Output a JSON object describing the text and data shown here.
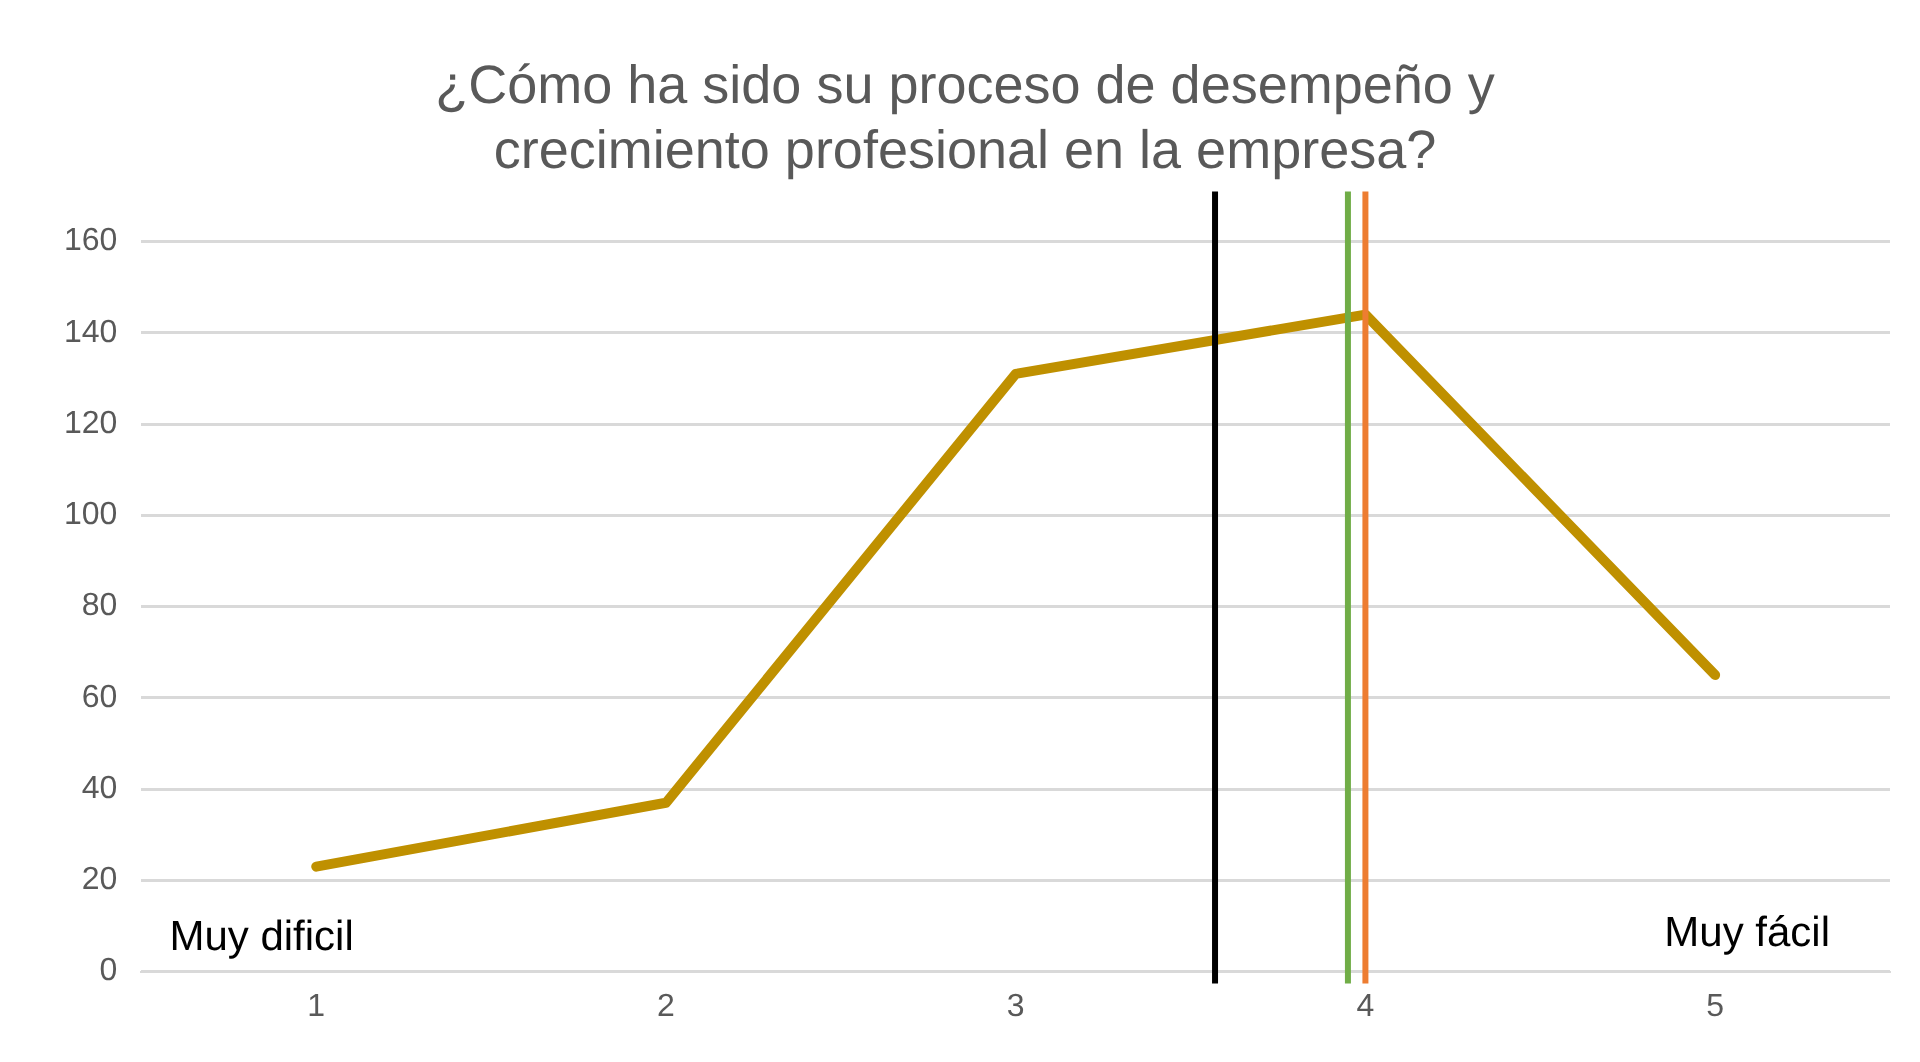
{
  "chart_data": {
    "type": "line",
    "title": [
      "¿Cómo ha sido su proceso de desempeño y",
      "crecimiento profesional en la empresa?"
    ],
    "x": [
      1,
      2,
      3,
      4,
      5
    ],
    "series": [
      {
        "color": "#bf9000",
        "values": [
          23,
          37,
          131,
          144,
          65
        ]
      }
    ],
    "xlim": [
      0.5,
      5.5
    ],
    "xticks": [
      1,
      2,
      3,
      4,
      5
    ],
    "ylim": [
      0,
      160
    ],
    "yticks": [
      0,
      20,
      40,
      60,
      80,
      100,
      120,
      140,
      160
    ],
    "grid": "y",
    "legend": false,
    "marker": "none",
    "line_style": "solid",
    "ref_lines": [
      {
        "axis": "x",
        "value": 3.57,
        "color": "#000000"
      },
      {
        "axis": "x",
        "value": 3.95,
        "color": "#70ad47"
      },
      {
        "axis": "x",
        "value": 4,
        "color": "#ed7d31"
      }
    ],
    "annotations": [
      "Muy dificil",
      "Muy fácil"
    ]
  }
}
